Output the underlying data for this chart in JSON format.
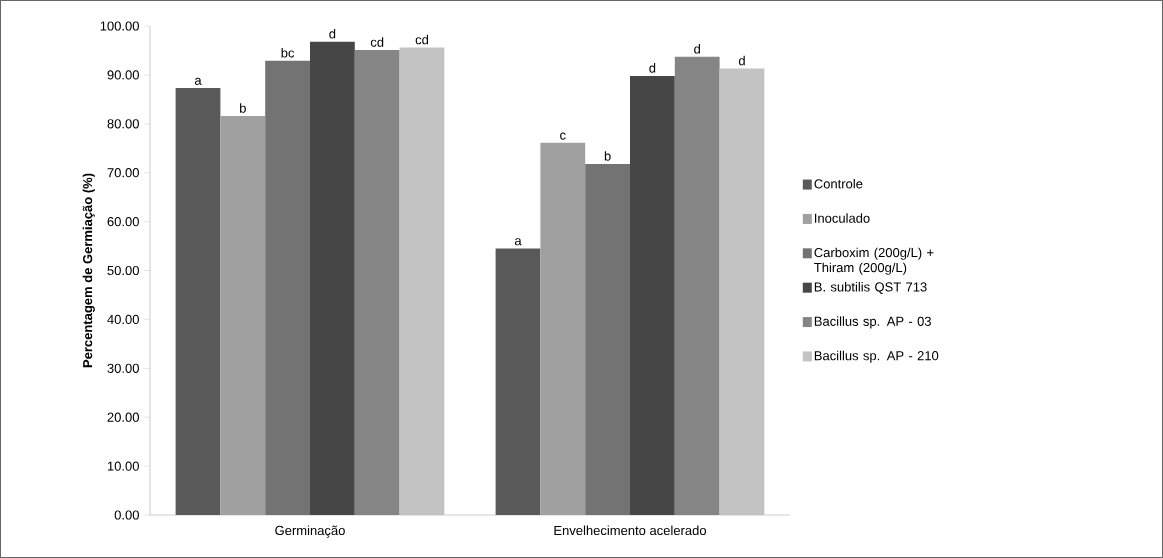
{
  "chart_data": {
    "type": "bar",
    "ylabel": "Percentagem de Germiação (%)",
    "categories": [
      "Germinação",
      "Envelhecimento acelerado"
    ],
    "series": [
      {
        "name": "Controle",
        "color": "#595959",
        "values": [
          87.3,
          54.5
        ],
        "value_labels": [
          "a",
          "a"
        ]
      },
      {
        "name": "Inoculado",
        "color": "#a0a0a0",
        "values": [
          81.6,
          76.1
        ],
        "value_labels": [
          "b",
          "c"
        ]
      },
      {
        "name": "Carboxim (200g/L) + Thiram (200g/L)",
        "color": "#737373",
        "values": [
          92.9,
          71.8
        ],
        "value_labels": [
          "bc",
          "b"
        ]
      },
      {
        "name": "B. subtilis QST 713",
        "color": "#464646",
        "values": [
          96.8,
          89.8
        ],
        "value_labels": [
          "d",
          "d"
        ]
      },
      {
        "name": "Bacillus sp. AP - 03",
        "color": "#858585",
        "values": [
          95.1,
          93.7
        ],
        "value_labels": [
          "cd",
          "d"
        ]
      },
      {
        "name": "Bacillus sp. AP - 210",
        "color": "#c3c3c3",
        "values": [
          95.6,
          91.3
        ],
        "value_labels": [
          "cd",
          "d"
        ]
      }
    ],
    "ylim": [
      0,
      100
    ],
    "yticks": [
      {
        "value": 0,
        "label": "0.00"
      },
      {
        "value": 10,
        "label": "10.00"
      },
      {
        "value": 20,
        "label": "20.00"
      },
      {
        "value": 30,
        "label": "30.00"
      },
      {
        "value": 40,
        "label": "40.00"
      },
      {
        "value": 50,
        "label": "50.00"
      },
      {
        "value": 60,
        "label": "60.00"
      },
      {
        "value": 70,
        "label": "70.00"
      },
      {
        "value": 80,
        "label": "80.00"
      },
      {
        "value": 90,
        "label": "90.00"
      },
      {
        "value": 100,
        "label": "100.00"
      }
    ],
    "grid": false,
    "legend": "right"
  }
}
